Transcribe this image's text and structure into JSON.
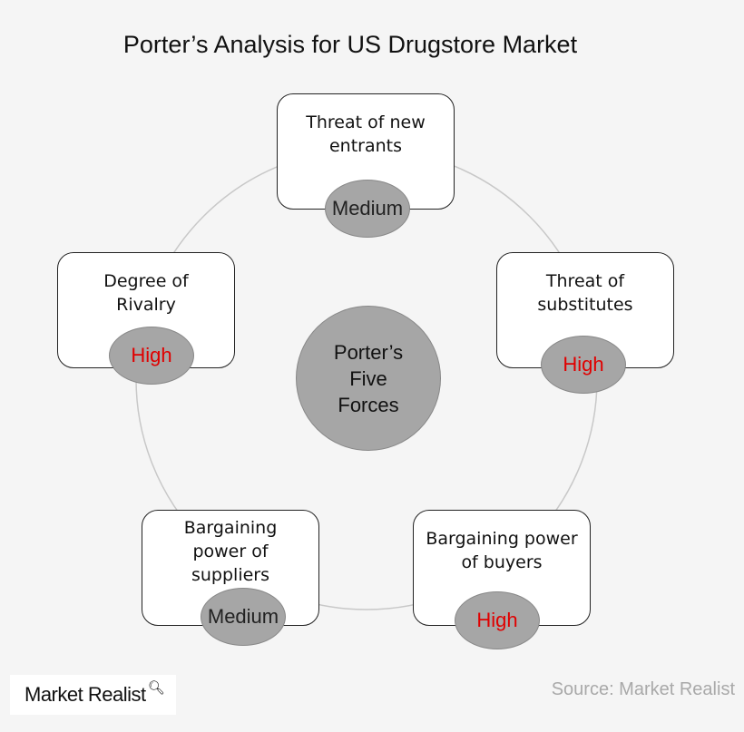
{
  "title": "Porter’s Analysis for US Drugstore Market",
  "center": "Porter’s\nFive\nForces",
  "colors": {
    "high": "#e00000",
    "medium": "#222222",
    "badge": "#a6a6a6"
  },
  "forces": [
    {
      "label": "Threat of new entrants",
      "rating": "Medium"
    },
    {
      "label": "Threat of substitutes",
      "rating": "High"
    },
    {
      "label": "Bargaining power of buyers",
      "rating": "High"
    },
    {
      "label": "Bargaining power of suppliers",
      "rating": "Medium"
    },
    {
      "label": "Degree of Rivalry",
      "rating": "High"
    }
  ],
  "logo": "Market Realist",
  "source": "Source: Market Realist"
}
